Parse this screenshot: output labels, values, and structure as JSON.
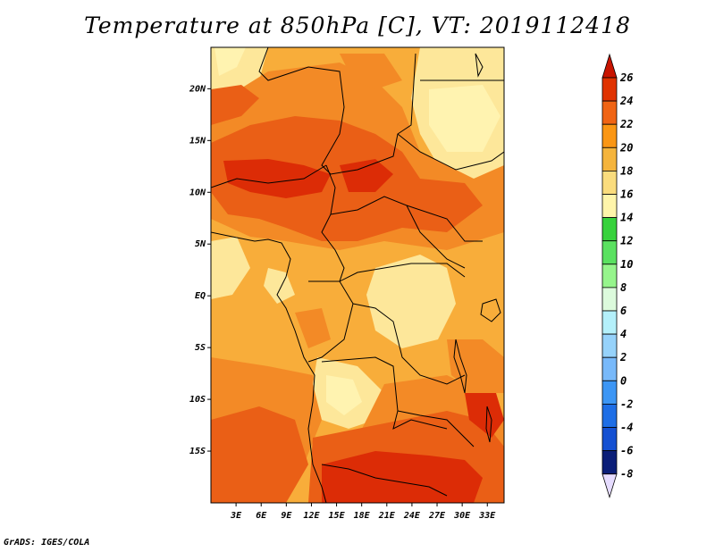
{
  "title": "Temperature at 850hPa [C], VT: 2019112418",
  "credit": "GrADS: IGES/COLA",
  "map": {
    "lon_range": [
      0,
      35
    ],
    "lat_range": [
      -20,
      24
    ],
    "lat_ticks": [
      {
        "value": 20,
        "label": "20N"
      },
      {
        "value": 15,
        "label": "15N"
      },
      {
        "value": 10,
        "label": "10N"
      },
      {
        "value": 5,
        "label": "5N"
      },
      {
        "value": 0,
        "label": "EQ"
      },
      {
        "value": -5,
        "label": "5S"
      },
      {
        "value": -10,
        "label": "10S"
      },
      {
        "value": -15,
        "label": "15S"
      }
    ],
    "lon_ticks": [
      {
        "value": 3,
        "label": "3E"
      },
      {
        "value": 6,
        "label": "6E"
      },
      {
        "value": 9,
        "label": "9E"
      },
      {
        "value": 12,
        "label": "12E"
      },
      {
        "value": 15,
        "label": "15E"
      },
      {
        "value": 18,
        "label": "18E"
      },
      {
        "value": 21,
        "label": "21E"
      },
      {
        "value": 24,
        "label": "24E"
      },
      {
        "value": 27,
        "label": "27E"
      },
      {
        "value": 30,
        "label": "30E"
      },
      {
        "value": 33,
        "label": "33E"
      }
    ]
  },
  "colorbar": {
    "min_label": "-8",
    "levels": [
      {
        "label": "26",
        "color": "#c81400"
      },
      {
        "label": "24",
        "color": "#e03200"
      },
      {
        "label": "22",
        "color": "#f06414"
      },
      {
        "label": "20",
        "color": "#fa9614"
      },
      {
        "label": "18",
        "color": "#f5b43c"
      },
      {
        "label": "16",
        "color": "#fadc7d"
      },
      {
        "label": "14",
        "color": "#fff5aa"
      },
      {
        "label": "12",
        "color": "#37d23c"
      },
      {
        "label": "10",
        "color": "#5ae160"
      },
      {
        "label": "8",
        "color": "#96f58c"
      },
      {
        "label": "6",
        "color": "#dcfadc"
      },
      {
        "label": "4",
        "color": "#b4f0fa"
      },
      {
        "label": "2",
        "color": "#96d2fa"
      },
      {
        "label": "0",
        "color": "#78b9fa"
      },
      {
        "label": "-2",
        "color": "#3c96f5"
      },
      {
        "label": "-4",
        "color": "#1e6ee6"
      },
      {
        "label": "-6",
        "color": "#1450d2"
      },
      {
        "label": "-8",
        "color": "#0a1e78"
      }
    ],
    "bottom_color": "#e6dcff"
  },
  "colors": {
    "base": "#f8ad3a",
    "warm": "#f38a26",
    "hot": "#ea5f16",
    "hottest": "#dc2c06",
    "cool": "#fde79a",
    "pale": "#fff3b0"
  }
}
